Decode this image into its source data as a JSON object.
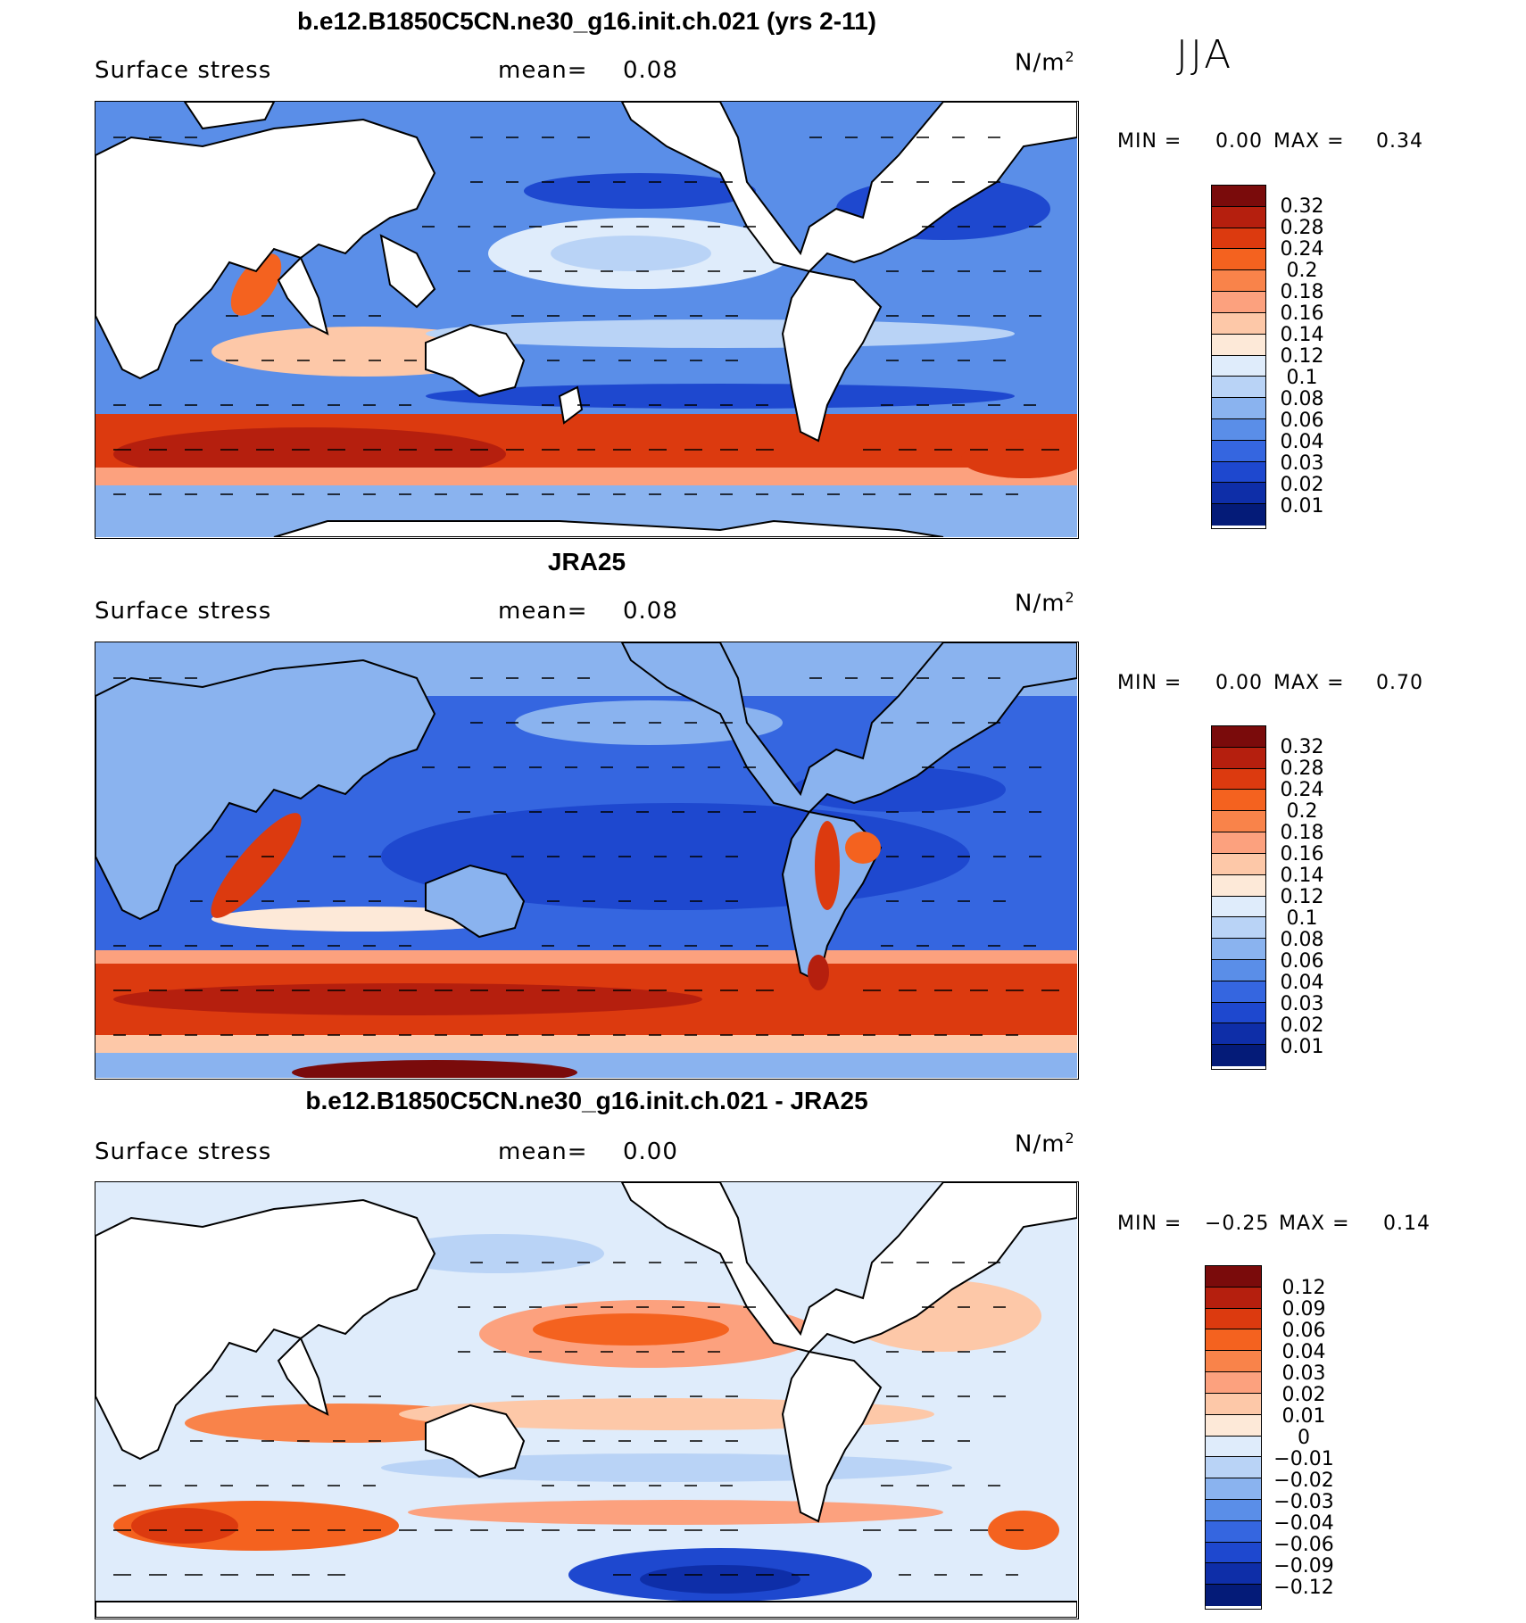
{
  "season": "JJA",
  "panels": [
    {
      "title": "b.e12.B1850C5CN.ne30_g16.init.ch.021 (yrs 2-11)",
      "variable": "Surface stress",
      "mean_label": "mean=",
      "mean_value": "0.08",
      "units_base": "N/m",
      "units_exp": "2",
      "min_label": "MIN =",
      "min_value": "0.00",
      "max_label": "MAX =",
      "max_value": "0.34",
      "colorbar_ticks": [
        "0.32",
        "0.28",
        "0.24",
        "0.2",
        "0.18",
        "0.16",
        "0.14",
        "0.12",
        "0.1",
        "0.08",
        "0.06",
        "0.04",
        "0.03",
        "0.02",
        "0.01"
      ],
      "colorbar_colors": [
        "#7a0b0b",
        "#b51f0e",
        "#dc3a0f",
        "#f4621f",
        "#f9834a",
        "#fca17e",
        "#fdc8a8",
        "#fde9d8",
        "#dfecfb",
        "#b9d3f6",
        "#8ab3ef",
        "#5a8ee8",
        "#3566e0",
        "#1e48cf",
        "#0e2ea8",
        "#041b78"
      ]
    },
    {
      "title": "JRA25",
      "variable": "Surface stress",
      "mean_label": "mean=",
      "mean_value": "0.08",
      "units_base": "N/m",
      "units_exp": "2",
      "min_label": "MIN =",
      "min_value": "0.00",
      "max_label": "MAX =",
      "max_value": "0.70",
      "colorbar_ticks": [
        "0.32",
        "0.28",
        "0.24",
        "0.2",
        "0.18",
        "0.16",
        "0.14",
        "0.12",
        "0.1",
        "0.08",
        "0.06",
        "0.04",
        "0.03",
        "0.02",
        "0.01"
      ],
      "colorbar_colors": [
        "#7a0b0b",
        "#b51f0e",
        "#dc3a0f",
        "#f4621f",
        "#f9834a",
        "#fca17e",
        "#fdc8a8",
        "#fde9d8",
        "#dfecfb",
        "#b9d3f6",
        "#8ab3ef",
        "#5a8ee8",
        "#3566e0",
        "#1e48cf",
        "#0e2ea8",
        "#041b78"
      ]
    },
    {
      "title": "b.e12.B1850C5CN.ne30_g16.init.ch.021 - JRA25",
      "variable": "Surface stress",
      "mean_label": "mean=",
      "mean_value": "0.00",
      "units_base": "N/m",
      "units_exp": "2",
      "min_label": "MIN =",
      "min_value": "−0.25",
      "max_label": "MAX =",
      "max_value": "0.14",
      "colorbar_ticks": [
        "0.12",
        "0.09",
        "0.06",
        "0.04",
        "0.03",
        "0.02",
        "0.01",
        "0",
        "−0.01",
        "−0.02",
        "−0.03",
        "−0.04",
        "−0.06",
        "−0.09",
        "−0.12"
      ],
      "colorbar_colors": [
        "#7a0b0b",
        "#b51f0e",
        "#dc3a0f",
        "#f4621f",
        "#f9834a",
        "#fca17e",
        "#fdc8a8",
        "#fde9d8",
        "#dfecfb",
        "#b9d3f6",
        "#8ab3ef",
        "#5a8ee8",
        "#3566e0",
        "#1e48cf",
        "#0e2ea8",
        "#041b78"
      ]
    }
  ]
}
